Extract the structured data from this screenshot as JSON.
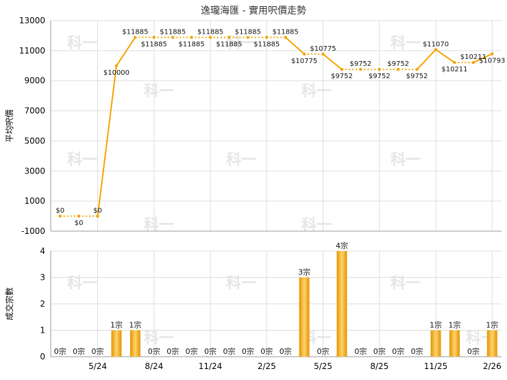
{
  "title": "逸瓏海匯 - 實用呎價走勢",
  "watermark": "科一",
  "colors": {
    "line": "#f5a400",
    "bar_light": "#ffd36a",
    "bar_dark": "#e39400",
    "grid": "#dddddd",
    "axis": "#999999"
  },
  "chart_data": [
    {
      "type": "line",
      "title": "逸瓏海匯 - 實用呎價走勢",
      "ylabel": "平均呎價",
      "ylim": [
        -1000,
        13000
      ],
      "yticks": [
        -1000,
        1000,
        3000,
        5000,
        7000,
        9000,
        11000,
        13000
      ],
      "xticks": [
        "5/24",
        "8/24",
        "11/24",
        "2/25",
        "5/25",
        "8/25",
        "11/25",
        "2/26"
      ],
      "grid": true,
      "series": [
        {
          "values": [
            0,
            0,
            0,
            10000,
            11885,
            11885,
            11885,
            11885,
            11885,
            11885,
            11885,
            11885,
            11885,
            10775,
            10775,
            9752,
            9752,
            9752,
            9752,
            9752,
            11070,
            10211,
            10211,
            10793
          ],
          "labels": [
            "$0",
            "$0",
            "$0",
            "$10000",
            "$11885",
            "$11885",
            "$11885",
            "$11885",
            "$11885",
            "$11885",
            "$11885",
            "$11885",
            "$11885",
            "$10775",
            "$10775",
            "$9752",
            "$9752",
            "$9752",
            "$9752",
            "$9752",
            "$11070",
            "$10211",
            "$10211",
            "$10793"
          ]
        }
      ]
    },
    {
      "type": "bar",
      "ylabel": "成交宗數",
      "ylim": [
        0,
        4
      ],
      "yticks": [
        0,
        1,
        2,
        3,
        4
      ],
      "xticks": [
        "5/24",
        "8/24",
        "11/24",
        "2/25",
        "5/25",
        "8/25",
        "11/25",
        "2/26"
      ],
      "grid": true,
      "values": [
        0,
        0,
        0,
        1,
        1,
        0,
        0,
        0,
        0,
        0,
        0,
        0,
        0,
        3,
        0,
        4,
        0,
        0,
        0,
        0,
        1,
        1,
        0,
        1
      ],
      "labels": [
        "0宗",
        "0宗",
        "0宗",
        "1宗",
        "1宗",
        "0宗",
        "0宗",
        "0宗",
        "0宗",
        "0宗",
        "0宗",
        "0宗",
        "0宗",
        "3宗",
        "0宗",
        "4宗",
        "0宗",
        "0宗",
        "0宗",
        "0宗",
        "1宗",
        "1宗",
        "0宗",
        "1宗"
      ]
    }
  ]
}
